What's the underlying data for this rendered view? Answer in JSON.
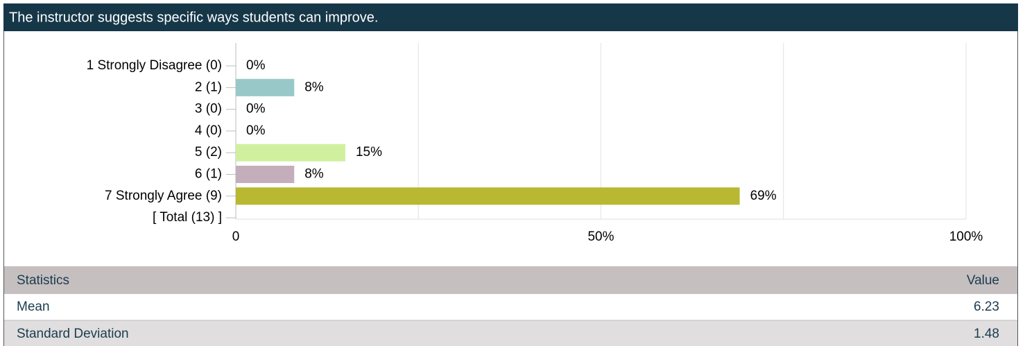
{
  "chart_data": {
    "type": "hbar",
    "title": "The instructor suggests specific ways students can improve.",
    "categories": [
      "1 Strongly Disagree (0)",
      "2 (1)",
      "3 (0)",
      "4 (0)",
      "5 (2)",
      "6 (1)",
      "7 Strongly Agree (9)",
      "[ Total (13) ]"
    ],
    "values": [
      0,
      8,
      0,
      0,
      15,
      8,
      69,
      null
    ],
    "value_labels": [
      "0%",
      "8%",
      "0%",
      "0%",
      "15%",
      "8%",
      "69%",
      null
    ],
    "colors": [
      "#7fa6c9",
      "#99c8c8",
      "#d9a56b",
      "#a3b38e",
      "#d0f0a0",
      "#c4aebc",
      "#b8b832",
      null
    ],
    "xlim": [
      0,
      100
    ],
    "xticks": [
      0,
      {
        "value": 50,
        "label": "50%"
      },
      {
        "value": 100,
        "label": "100%"
      }
    ],
    "xgrid_minor": [
      25,
      75
    ],
    "grid": true
  },
  "statistics": {
    "header": [
      "Statistics",
      "Value"
    ],
    "rows": [
      [
        "Mean",
        "6.23"
      ],
      [
        "Standard Deviation",
        "1.48"
      ]
    ]
  }
}
